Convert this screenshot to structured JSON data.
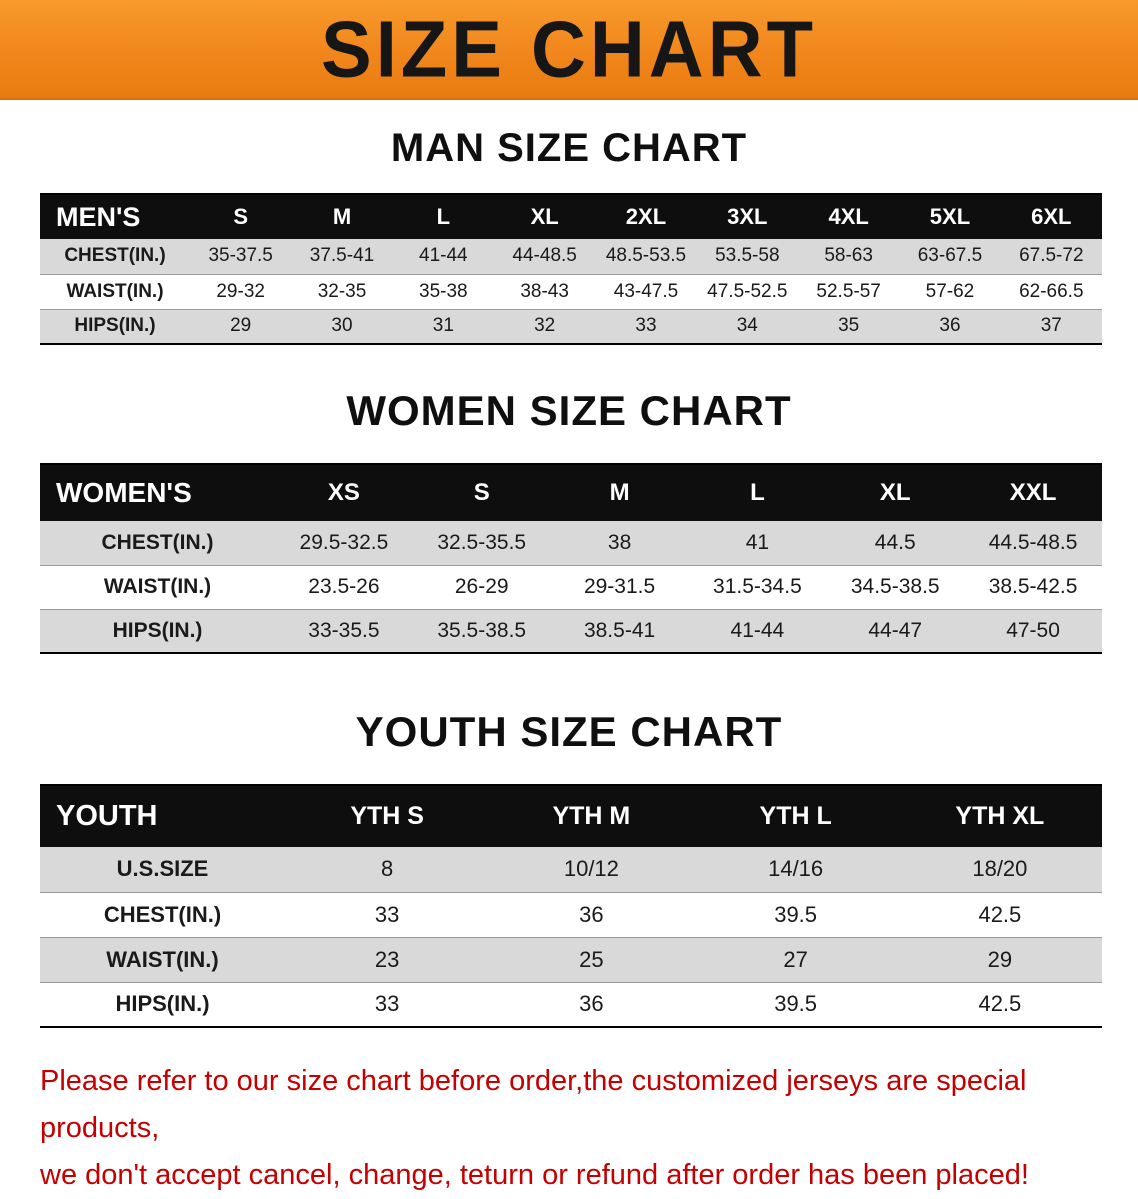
{
  "banner": {
    "title": "SIZE CHART",
    "bg_color": "#F1861C",
    "text_color": "#161616"
  },
  "chart_data": [
    {
      "type": "table",
      "title": "MAN SIZE CHART",
      "header_label": "MEN'S",
      "columns": [
        "S",
        "M",
        "L",
        "XL",
        "2XL",
        "3XL",
        "4XL",
        "5XL",
        "6XL"
      ],
      "rows": [
        {
          "label": "CHEST(IN.)",
          "values": [
            "35-37.5",
            "37.5-41",
            "41-44",
            "44-48.5",
            "48.5-53.5",
            "53.5-58",
            "58-63",
            "63-67.5",
            "67.5-72"
          ]
        },
        {
          "label": "WAIST(IN.)",
          "values": [
            "29-32",
            "32-35",
            "35-38",
            "38-43",
            "43-47.5",
            "47.5-52.5",
            "52.5-57",
            "57-62",
            "62-66.5"
          ]
        },
        {
          "label": "HIPS(IN.)",
          "values": [
            "29",
            "30",
            "31",
            "32",
            "33",
            "34",
            "35",
            "36",
            "37"
          ]
        }
      ]
    },
    {
      "type": "table",
      "title": "WOMEN SIZE CHART",
      "header_label": "WOMEN'S",
      "columns": [
        "XS",
        "S",
        "M",
        "L",
        "XL",
        "XXL"
      ],
      "rows": [
        {
          "label": "CHEST(IN.)",
          "values": [
            "29.5-32.5",
            "32.5-35.5",
            "38",
            "41",
            "44.5",
            "44.5-48.5"
          ]
        },
        {
          "label": "WAIST(IN.)",
          "values": [
            "23.5-26",
            "26-29",
            "29-31.5",
            "31.5-34.5",
            "34.5-38.5",
            "38.5-42.5"
          ]
        },
        {
          "label": "HIPS(IN.)",
          "values": [
            "33-35.5",
            "35.5-38.5",
            "38.5-41",
            "41-44",
            "44-47",
            "47-50"
          ]
        }
      ]
    },
    {
      "type": "table",
      "title": "YOUTH SIZE CHART",
      "header_label": "YOUTH",
      "columns": [
        "YTH S",
        "YTH M",
        "YTH L",
        "YTH XL"
      ],
      "rows": [
        {
          "label": "U.S.SIZE",
          "values": [
            "8",
            "10/12",
            "14/16",
            "18/20"
          ]
        },
        {
          "label": "CHEST(IN.)",
          "values": [
            "33",
            "36",
            "39.5",
            "42.5"
          ]
        },
        {
          "label": "WAIST(IN.)",
          "values": [
            "23",
            "25",
            "27",
            "29"
          ]
        },
        {
          "label": "HIPS(IN.)",
          "values": [
            "33",
            "36",
            "39.5",
            "42.5"
          ]
        }
      ]
    }
  ],
  "disclaimer": {
    "color": "#C40000",
    "lines": [
      "Please refer to our size chart before order,the customized jerseys are special products,",
      "we don't accept cancel, change, teturn or refund after order has been placed!"
    ]
  }
}
